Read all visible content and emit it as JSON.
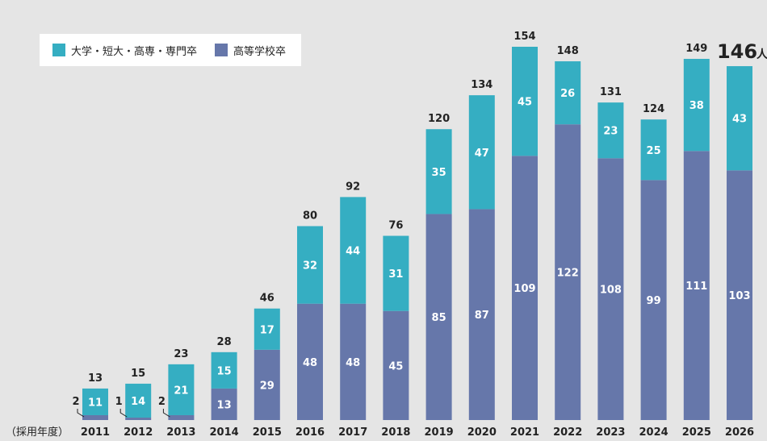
{
  "chart_data": {
    "type": "bar",
    "stacked": true,
    "axis_caption": "（採用年度）",
    "categories": [
      "2011",
      "2012",
      "2013",
      "2014",
      "2015",
      "2016",
      "2017",
      "2018",
      "2019",
      "2020",
      "2021",
      "2022",
      "2023",
      "2024",
      "2025",
      "2026"
    ],
    "series": [
      {
        "name": "高等学校卒",
        "color": "#6677aa",
        "values": [
          2,
          1,
          2,
          13,
          29,
          48,
          48,
          45,
          85,
          87,
          109,
          122,
          108,
          99,
          111,
          103
        ]
      },
      {
        "name": "大学・短大・高専・専門卒",
        "color": "#35aec2",
        "values": [
          11,
          14,
          21,
          15,
          17,
          32,
          44,
          31,
          35,
          47,
          45,
          26,
          23,
          25,
          38,
          43
        ]
      }
    ],
    "totals": [
      "13",
      "15",
      "23",
      "28",
      "46",
      "80",
      "92",
      "76",
      "120",
      "134",
      "154",
      "148",
      "131",
      "124",
      "149",
      "146"
    ],
    "highlight_unit": "人",
    "ylim": [
      0,
      165
    ],
    "legend_position": "top-left"
  }
}
